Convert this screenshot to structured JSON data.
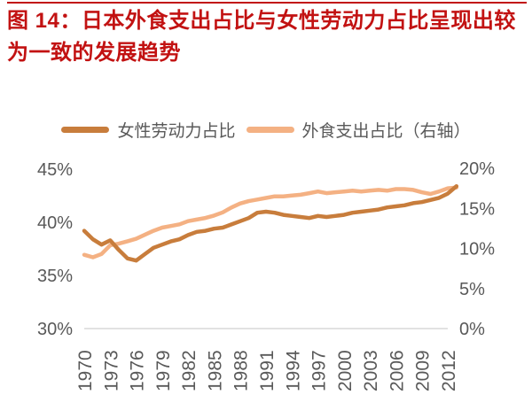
{
  "page": {
    "title": "图 14：日本外食支出占比与女性劳动力占比呈现出较为一致的发展趋势",
    "title_color": "#C21212",
    "rule_color": "#C21212",
    "background_color": "#FFFFFF",
    "text_gray": "#595959",
    "axis_line_color": "#D9D9D9"
  },
  "legend": {
    "items": [
      {
        "label": "女性劳动力占比",
        "color": "#C87D3C"
      },
      {
        "label": "外食支出占比（右轴）",
        "color": "#F4B183"
      }
    ]
  },
  "chart_data": {
    "type": "line",
    "title": "日本外食支出占比与女性劳动力占比",
    "grid": false,
    "legend_position": "top",
    "x": [
      1970,
      1971,
      1972,
      1973,
      1974,
      1975,
      1976,
      1977,
      1978,
      1979,
      1980,
      1981,
      1982,
      1983,
      1984,
      1985,
      1986,
      1987,
      1988,
      1989,
      1990,
      1991,
      1992,
      1993,
      1994,
      1995,
      1996,
      1997,
      1998,
      1999,
      2000,
      2001,
      2002,
      2003,
      2004,
      2005,
      2006,
      2007,
      2008,
      2009,
      2010,
      2011,
      2012,
      2013
    ],
    "x_tick_labels": [
      "1970",
      "1973",
      "1976",
      "1979",
      "1982",
      "1985",
      "1988",
      "1991",
      "1994",
      "1997",
      "2000",
      "2003",
      "2006",
      "2009",
      "2012"
    ],
    "left_axis": {
      "ticks": [
        "45%",
        "40%",
        "35%",
        "30%"
      ],
      "ylim": [
        30,
        45
      ],
      "unit": "%"
    },
    "right_axis": {
      "ticks": [
        "20%",
        "15%",
        "10%",
        "5%",
        "0%"
      ],
      "ylim": [
        0,
        20
      ],
      "unit": "%"
    },
    "series": [
      {
        "name": "女性劳动力占比",
        "axis": "left",
        "color": "#C87D3C",
        "values": [
          39.2,
          38.4,
          37.9,
          38.3,
          37.4,
          36.6,
          36.4,
          37.0,
          37.6,
          37.9,
          38.2,
          38.4,
          38.8,
          39.1,
          39.2,
          39.4,
          39.5,
          39.8,
          40.1,
          40.4,
          40.9,
          41.0,
          40.9,
          40.7,
          40.6,
          40.5,
          40.4,
          40.6,
          40.5,
          40.6,
          40.7,
          40.9,
          41.0,
          41.1,
          41.2,
          41.4,
          41.5,
          41.6,
          41.8,
          41.9,
          42.1,
          42.3,
          42.7,
          43.4
        ]
      },
      {
        "name": "外食支出占比（右轴）",
        "axis": "right",
        "color": "#F4B183",
        "values": [
          9.2,
          8.9,
          9.3,
          10.4,
          10.6,
          10.9,
          11.2,
          11.7,
          12.2,
          12.6,
          12.8,
          13.0,
          13.4,
          13.6,
          13.8,
          14.1,
          14.5,
          15.1,
          15.6,
          15.9,
          16.1,
          16.3,
          16.5,
          16.5,
          16.6,
          16.7,
          16.9,
          17.1,
          16.9,
          17.0,
          17.1,
          17.2,
          17.1,
          17.2,
          17.3,
          17.2,
          17.4,
          17.4,
          17.3,
          17.0,
          16.8,
          17.1,
          17.5,
          17.6
        ]
      }
    ]
  }
}
